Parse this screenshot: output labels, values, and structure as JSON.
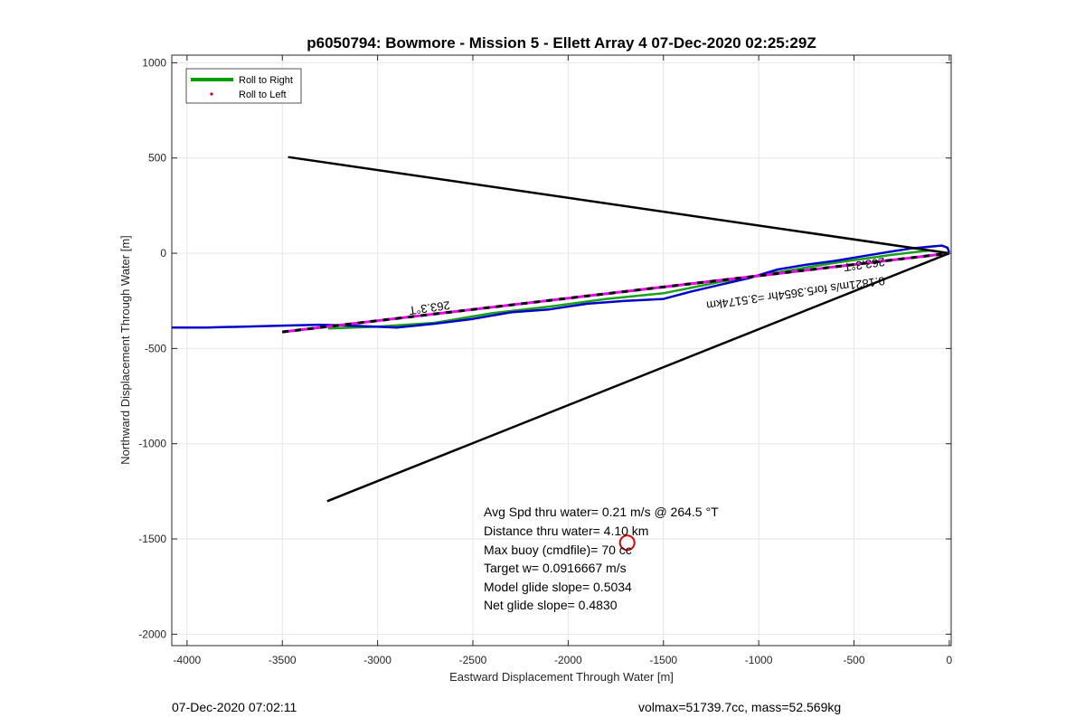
{
  "chart_data": {
    "type": "line",
    "title": "p6050794: Bowmore - Mission 5 - Ellett Array 4 07-Dec-2020 02:25:29Z",
    "xlabel": "Eastward Displacement Through Water [m]",
    "ylabel": "Northward Displacement Through Water [m]",
    "xlim": [
      -4080,
      10
    ],
    "ylim": [
      -2060,
      1040
    ],
    "xticks": [
      -4000,
      -3500,
      -3000,
      -2500,
      -2000,
      -1500,
      -1000,
      -500,
      0
    ],
    "xtick_labels": [
      "-4000",
      "-3500",
      "-3000",
      "-2500",
      "-2000",
      "-1500",
      "-1000",
      "-500",
      "0"
    ],
    "yticks": [
      -2000,
      -1500,
      -1000,
      -500,
      0,
      500,
      1000
    ],
    "ytick_labels": [
      "-2000",
      "-1500",
      "-1000",
      "-500",
      "0",
      "500",
      "1000"
    ],
    "grid": true,
    "legend": {
      "placement": "top-left",
      "entries": [
        {
          "label": "Roll to Right",
          "color": "#00a000",
          "style": "line"
        },
        {
          "label": "Roll to Left",
          "color": "#e00000",
          "style": "dot"
        }
      ]
    },
    "series": [
      {
        "name": "Roll to Right",
        "color": "#1aa01a",
        "x": [
          -3260,
          -3000,
          -2700,
          -2400,
          -2100,
          -1800,
          -1500,
          -1200,
          -900,
          -600,
          -300,
          -100,
          0
        ],
        "y": [
          -395,
          -385,
          -365,
          -315,
          -280,
          -240,
          -210,
          -150,
          -100,
          -50,
          -8,
          15,
          0
        ]
      },
      {
        "name": "Roll to Left",
        "color": "#0000cc",
        "x": [
          -4080,
          -3900,
          -3700,
          -3500,
          -3300,
          -3100,
          -2900,
          -2700,
          -2500,
          -2300,
          -2100,
          -1900,
          -1700,
          -1500,
          -1350,
          -1200,
          -1050,
          -900,
          -750,
          -600,
          -450,
          -300,
          -200,
          -100,
          -40,
          -10,
          0
        ],
        "y": [
          -390,
          -390,
          -385,
          -380,
          -375,
          -382,
          -390,
          -370,
          -345,
          -310,
          -295,
          -265,
          -250,
          -240,
          -200,
          -165,
          -130,
          -85,
          -60,
          -40,
          -15,
          10,
          25,
          35,
          40,
          30,
          5
        ]
      },
      {
        "name": "",
        "color": "#ee00ee",
        "style": "dashed",
        "x": [
          -3500,
          0
        ],
        "y": [
          -413,
          0
        ]
      },
      {
        "name": "",
        "color": "#000000",
        "style": "dashed",
        "x": [
          -3500,
          0
        ],
        "y": [
          -413,
          0
        ]
      },
      {
        "name": "",
        "color": "#000000",
        "x": [
          -3470,
          0
        ],
        "y": [
          505,
          0
        ]
      },
      {
        "name": "",
        "color": "#000000",
        "x": [
          0,
          -3265
        ],
        "y": [
          0,
          -1302
        ]
      }
    ],
    "markers": [
      {
        "x": -1690,
        "y": -1520,
        "color": "#e00000",
        "shape": "circle"
      }
    ],
    "annotations": {
      "bearing_left": "263.3°T",
      "bearing_right": "263.3°T",
      "speed_note": "0.1821m/s for5.3654hr =3.5174km"
    },
    "stats": [
      "Avg Spd thru water=  0.21 m/s @ 264.5 °T",
      "Distance thru water=  4.10 km",
      "Max buoy (cmdfile)= 70 cc",
      "Target w= 0.0916667 m/s",
      "Model glide slope= 0.5034",
      "Net glide slope= 0.4830"
    ]
  },
  "footer": {
    "timestamp": "07-Dec-2020 07:02:11",
    "volmax_mass": "volmax=51739.7cc, mass=52.569kg"
  }
}
